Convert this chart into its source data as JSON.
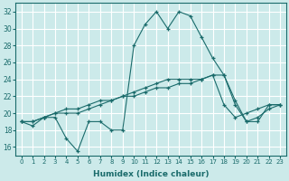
{
  "xlabel": "Humidex (Indice chaleur)",
  "background_color": "#cceaea",
  "grid_color": "#ffffff",
  "line_color": "#1a6b6b",
  "xlim": [
    -0.5,
    23.5
  ],
  "ylim": [
    15,
    33
  ],
  "yticks": [
    16,
    18,
    20,
    22,
    24,
    26,
    28,
    30,
    32
  ],
  "xticks": [
    0,
    1,
    2,
    3,
    4,
    5,
    6,
    7,
    8,
    9,
    10,
    11,
    12,
    13,
    14,
    15,
    16,
    17,
    18,
    19,
    20,
    21,
    22,
    23
  ],
  "series": [
    {
      "x": [
        0,
        1,
        2,
        3,
        4,
        5,
        6,
        7,
        8,
        9,
        10,
        11,
        12,
        13,
        14,
        15,
        16,
        17,
        18,
        19,
        20,
        21,
        22,
        23
      ],
      "y": [
        19,
        18.5,
        19.5,
        19.5,
        17,
        15.5,
        19,
        19,
        18,
        18,
        28,
        30.5,
        32,
        30,
        32,
        31.5,
        29,
        26.5,
        24.5,
        21,
        19,
        19,
        21,
        21
      ]
    },
    {
      "x": [
        0,
        1,
        2,
        3,
        4,
        5,
        6,
        7,
        8,
        9,
        10,
        11,
        12,
        13,
        14,
        15,
        16,
        17,
        18,
        19,
        20,
        21,
        22,
        23
      ],
      "y": [
        19,
        19,
        19.5,
        20,
        20,
        20,
        20.5,
        21,
        21.5,
        22,
        22.5,
        23,
        23.5,
        24,
        24,
        24,
        24,
        24.5,
        24.5,
        21.5,
        19,
        19.5,
        20.5,
        21
      ]
    },
    {
      "x": [
        0,
        1,
        2,
        3,
        4,
        5,
        6,
        7,
        8,
        9,
        10,
        11,
        12,
        13,
        14,
        15,
        16,
        17,
        18,
        19,
        20,
        21,
        22,
        23
      ],
      "y": [
        19,
        19,
        19.5,
        20,
        20.5,
        20.5,
        21,
        21.5,
        21.5,
        22,
        22,
        22.5,
        23,
        23,
        23.5,
        23.5,
        24,
        24.5,
        21,
        19.5,
        20,
        20.5,
        21,
        21
      ]
    }
  ]
}
